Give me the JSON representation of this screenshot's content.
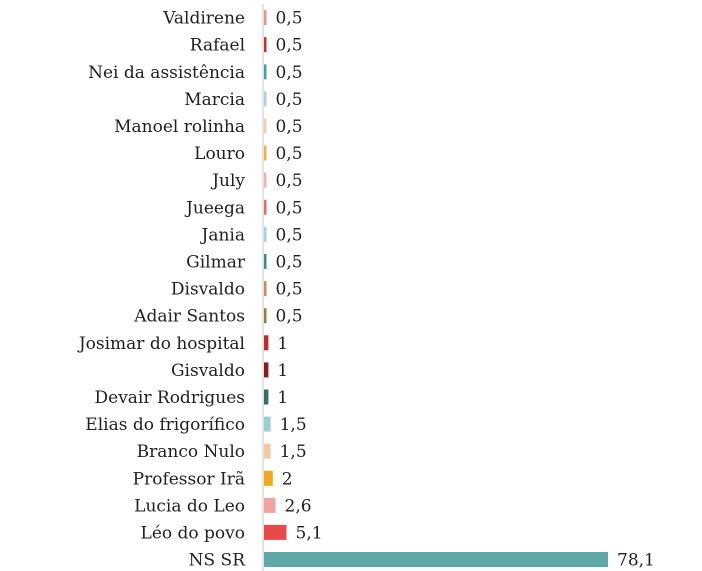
{
  "chart_data": {
    "type": "bar",
    "orientation": "horizontal",
    "title": "",
    "xlabel": "",
    "ylabel": "",
    "xlim": [
      0,
      78.1
    ],
    "grid": false,
    "legend": "none",
    "categories": [
      "Valdirene",
      "Rafael",
      "Nei da assistência",
      "Marcia",
      "Manoel rolinha",
      "Louro",
      "July",
      "Jueega",
      "Jania",
      "Gilmar",
      "Disvaldo",
      "Adair Santos",
      "Josimar do hospital",
      "Gisvaldo",
      "Devair Rodrigues",
      "Elias do frigorífico",
      "Branco Nulo",
      "Professor Irã",
      "Lucia do Leo",
      "Léo do povo",
      "NS SR"
    ],
    "values": [
      0.5,
      0.5,
      0.5,
      0.5,
      0.5,
      0.5,
      0.5,
      0.5,
      0.5,
      0.5,
      0.5,
      0.5,
      1,
      1,
      1,
      1.5,
      1.5,
      2,
      2.6,
      5.1,
      78.1
    ],
    "value_labels": [
      "0,5",
      "0,5",
      "0,5",
      "0,5",
      "0,5",
      "0,5",
      "0,5",
      "0,5",
      "0,5",
      "0,5",
      "0,5",
      "0,5",
      "1",
      "1",
      "1",
      "1,5",
      "1,5",
      "2",
      "2,6",
      "5,1",
      "78,1"
    ],
    "colors": [
      "#e8928f",
      "#c9302c",
      "#4a9ea1",
      "#a9d4d7",
      "#f6cfa6",
      "#f2b33d",
      "#f3b1ae",
      "#e46b66",
      "#a8cfe0",
      "#3f8c86",
      "#c98b5a",
      "#9c7a3c",
      "#c62828",
      "#8b1a1a",
      "#356d6a",
      "#9ccfd3",
      "#f5c9a4",
      "#f2a81d",
      "#f0a3a1",
      "#e84a4a",
      "#5fa8a8"
    ]
  }
}
